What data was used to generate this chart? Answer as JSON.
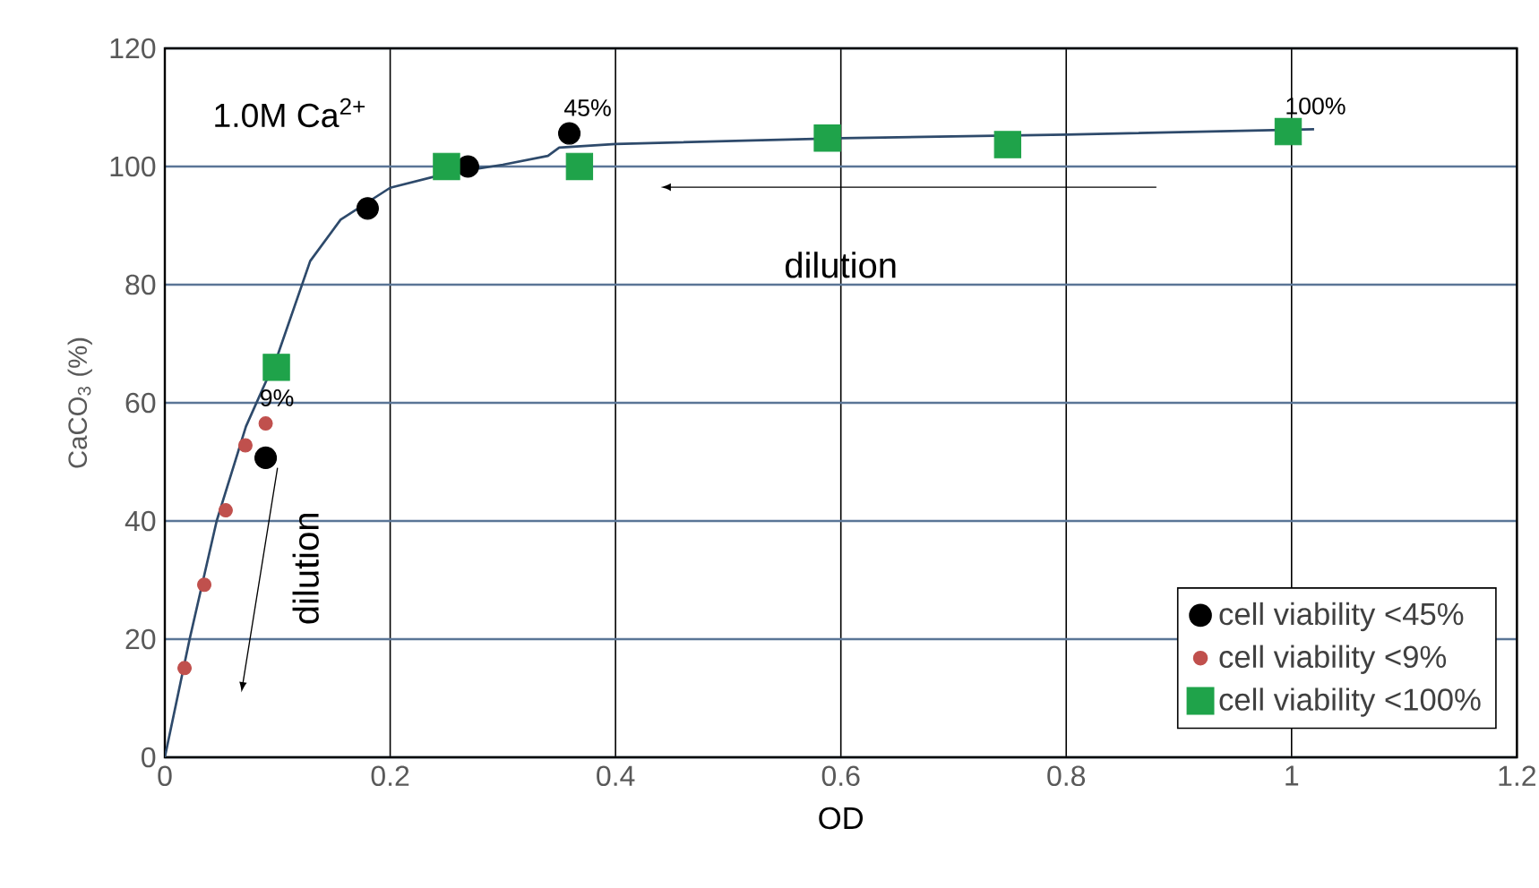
{
  "chart_data": {
    "type": "scatter",
    "xlabel": "OD",
    "ylabel": "CaCO$_{3}$  (%)",
    "xlim": [
      0,
      1.2
    ],
    "ylim": [
      0,
      120
    ],
    "xticks": [
      0,
      0.2,
      0.4,
      0.6,
      0.8,
      1,
      1.2
    ],
    "yticks": [
      0,
      20,
      40,
      60,
      80,
      100,
      120
    ],
    "grid": true,
    "legend": "bottom right",
    "series": [
      {
        "name": "cell viability <45%",
        "color": "#000000",
        "marker": "circle",
        "x": [
          0.0895,
          0.18,
          0.269,
          0.359
        ],
        "values": [
          50.7,
          92.9,
          100,
          105.6
        ]
      },
      {
        "name": "cell viability <9%",
        "color": "#c0504d",
        "marker": "circle",
        "x": [
          0.0175,
          0.035,
          0.054,
          0.0715,
          0.0895
        ],
        "values": [
          15.1,
          29.2,
          41.8,
          52.8,
          56.5
        ]
      },
      {
        "name": "cell viability <100%",
        "color": "#1fa34a",
        "marker": "square",
        "x": [
          0.099,
          0.25,
          0.368,
          0.588,
          0.748,
          0.997
        ],
        "values": [
          66,
          100,
          100,
          104.8,
          103.7,
          105.9
        ]
      },
      {
        "type": "line",
        "color": "#2e4a6b",
        "marker": "none",
        "line_style": "solid",
        "x": [
          0,
          0.022,
          0.046,
          0.072,
          0.1,
          0.129,
          0.156,
          0.2,
          0.25,
          0.3,
          0.34,
          0.35,
          0.4,
          0.6,
          0.8,
          1.02
        ],
        "values": [
          0,
          20,
          40,
          56,
          68,
          84,
          91,
          96.4,
          98.8,
          100.3,
          101.8,
          103.2,
          103.8,
          104.8,
          105.4,
          106.3
        ]
      }
    ],
    "annotations": [
      "1.0M Ca$^{2+}$",
      "dilution",
      "dilution",
      {
        "text": "45%",
        "x": 0.36,
        "y": 105.6
      },
      {
        "text": "9%",
        "x": 0.09,
        "y": 56.5
      },
      {
        "text": "100%",
        "x": 1,
        "y": 105.9
      }
    ]
  }
}
